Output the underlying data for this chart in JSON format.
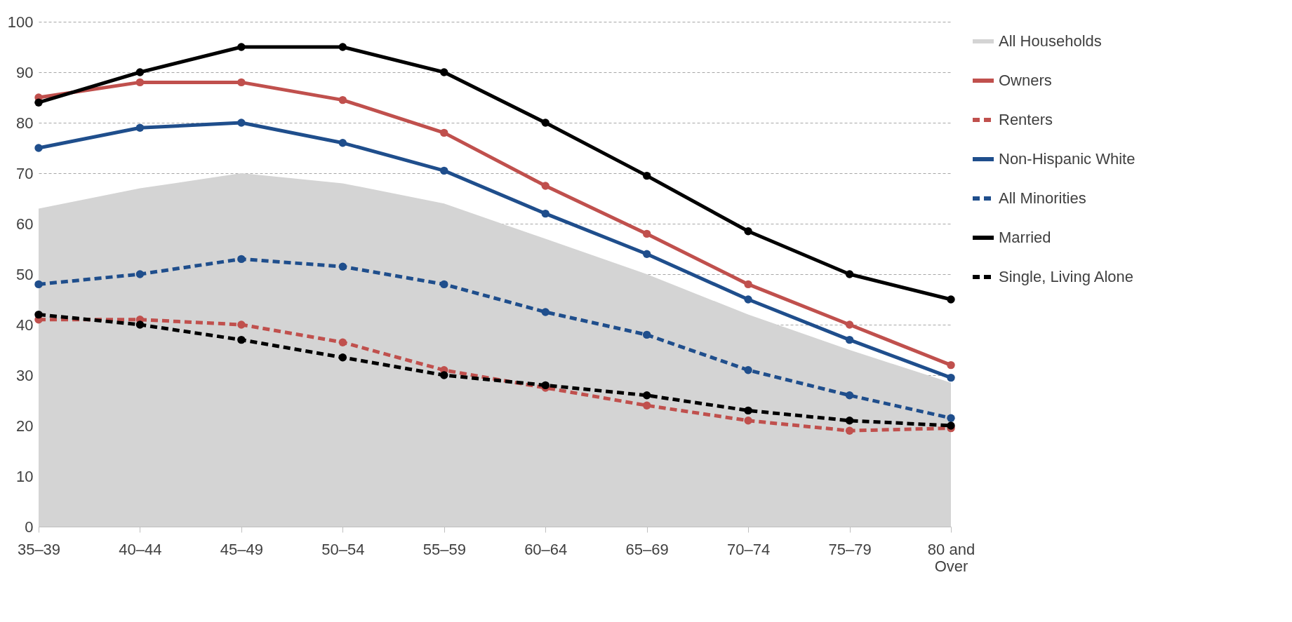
{
  "chart_data": {
    "type": "line",
    "categories": [
      "35–39",
      "40–44",
      "45–49",
      "50–54",
      "55–59",
      "60–64",
      "65–69",
      "70–74",
      "75–79",
      "80 and Over"
    ],
    "series": [
      {
        "name": "All Households",
        "type": "area",
        "marker": "none",
        "color": "#d4d4d4",
        "values": [
          63,
          67,
          70,
          68,
          64,
          57,
          50,
          42,
          35,
          28.5
        ]
      },
      {
        "name": "Owners",
        "color": "#c0504d",
        "line_style": "solid",
        "values": [
          85,
          88,
          88,
          84.5,
          78,
          67.5,
          58,
          48,
          40,
          32
        ]
      },
      {
        "name": "Renters",
        "color": "#c0504d",
        "line_style": "dashed",
        "values": [
          41,
          41,
          40,
          36.5,
          31,
          27.5,
          24,
          21,
          19,
          19.5
        ]
      },
      {
        "name": "Non-Hispanic White",
        "color": "#1f4e8c",
        "line_style": "solid",
        "values": [
          75,
          79,
          80,
          76,
          70.5,
          62,
          54,
          45,
          37,
          29.5
        ]
      },
      {
        "name": "All Minorities",
        "color": "#1f4e8c",
        "line_style": "dashed",
        "values": [
          48,
          50,
          53,
          51.5,
          48,
          42.5,
          38,
          31,
          26,
          21.5
        ]
      },
      {
        "name": "Married",
        "color": "#000000",
        "line_style": "solid",
        "values": [
          84,
          90,
          95,
          95,
          90,
          80,
          69.5,
          58.5,
          50,
          45
        ]
      },
      {
        "name": "Single, Living Alone",
        "color": "#000000",
        "line_style": "dashed",
        "values": [
          42,
          40,
          37,
          33.5,
          30,
          28,
          26,
          23,
          21,
          20
        ]
      }
    ],
    "ylim": [
      0,
      100
    ],
    "yticks": [
      0,
      10,
      20,
      30,
      40,
      50,
      60,
      70,
      80,
      90,
      100
    ],
    "grid": "y",
    "legend": "right",
    "marker": "circle"
  }
}
